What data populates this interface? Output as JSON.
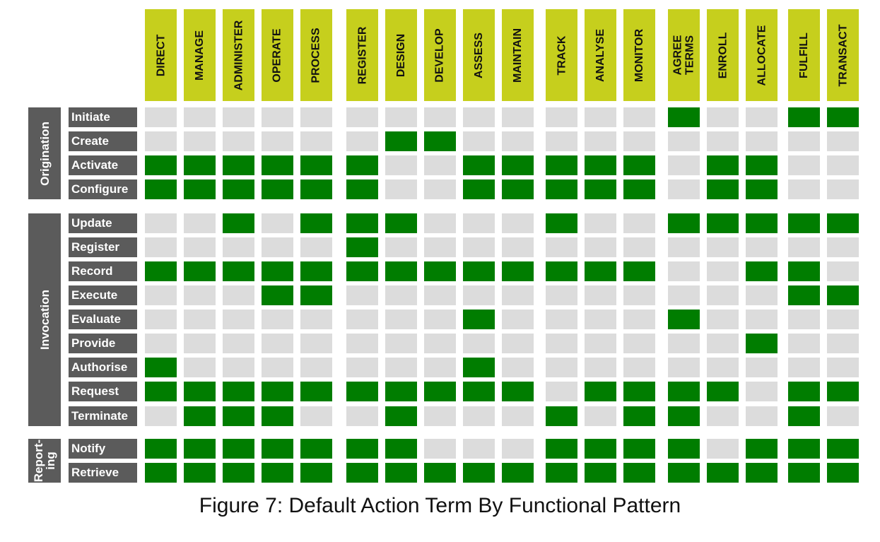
{
  "columns": [
    {
      "id": "direct",
      "label": "DIRECT"
    },
    {
      "id": "manage",
      "label": "MANAGE"
    },
    {
      "id": "administer",
      "label": "ADMINISTER"
    },
    {
      "id": "operate",
      "label": "OPERATE"
    },
    {
      "id": "process",
      "label": "PROCESS"
    },
    {
      "id": "register",
      "label": "REGISTER"
    },
    {
      "id": "design",
      "label": "DESIGN"
    },
    {
      "id": "develop",
      "label": "DEVELOP"
    },
    {
      "id": "assess",
      "label": "ASSESS"
    },
    {
      "id": "maintain",
      "label": "MAINTAIN"
    },
    {
      "id": "track",
      "label": "TRACK"
    },
    {
      "id": "analyse",
      "label": "ANALYSE"
    },
    {
      "id": "monitor",
      "label": "MONITOR"
    },
    {
      "id": "agree-terms",
      "label": "AGREE\nTERMS"
    },
    {
      "id": "enroll",
      "label": "ENROLL"
    },
    {
      "id": "allocate",
      "label": "ALLOCATE"
    },
    {
      "id": "fulfill",
      "label": "FULFILL"
    },
    {
      "id": "transact",
      "label": "TRANSACT"
    }
  ],
  "groups": [
    {
      "id": "origination",
      "label": "Origination"
    },
    {
      "id": "invocation",
      "label": "Invocation"
    },
    {
      "id": "reporting",
      "label": "Report-\ning"
    }
  ],
  "rows": [
    {
      "group": 0,
      "label": "Initiate",
      "cells": [
        0,
        0,
        0,
        0,
        0,
        0,
        0,
        0,
        0,
        0,
        0,
        0,
        0,
        1,
        0,
        0,
        1,
        1
      ]
    },
    {
      "group": 0,
      "label": "Create",
      "cells": [
        0,
        0,
        0,
        0,
        0,
        0,
        1,
        1,
        0,
        0,
        0,
        0,
        0,
        0,
        0,
        0,
        0,
        0
      ]
    },
    {
      "group": 0,
      "label": "Activate",
      "cells": [
        1,
        1,
        1,
        1,
        1,
        1,
        0,
        0,
        1,
        1,
        1,
        1,
        1,
        0,
        1,
        1,
        0,
        0
      ]
    },
    {
      "group": 0,
      "label": "Configure",
      "cells": [
        1,
        1,
        1,
        1,
        1,
        1,
        0,
        0,
        1,
        1,
        1,
        1,
        1,
        0,
        1,
        1,
        0,
        0
      ]
    },
    {
      "group": 1,
      "label": "Update",
      "cells": [
        0,
        0,
        1,
        0,
        1,
        1,
        1,
        0,
        0,
        0,
        1,
        0,
        0,
        1,
        1,
        1,
        1,
        1
      ]
    },
    {
      "group": 1,
      "label": "Register",
      "cells": [
        0,
        0,
        0,
        0,
        0,
        1,
        0,
        0,
        0,
        0,
        0,
        0,
        0,
        0,
        0,
        0,
        0,
        0
      ]
    },
    {
      "group": 1,
      "label": "Record",
      "cells": [
        1,
        1,
        1,
        1,
        1,
        1,
        1,
        1,
        1,
        1,
        1,
        1,
        1,
        0,
        0,
        1,
        1,
        0
      ]
    },
    {
      "group": 1,
      "label": "Execute",
      "cells": [
        0,
        0,
        0,
        1,
        1,
        0,
        0,
        0,
        0,
        0,
        0,
        0,
        0,
        0,
        0,
        0,
        1,
        1
      ]
    },
    {
      "group": 1,
      "label": "Evaluate",
      "cells": [
        0,
        0,
        0,
        0,
        0,
        0,
        0,
        0,
        1,
        0,
        0,
        0,
        0,
        1,
        0,
        0,
        0,
        0
      ]
    },
    {
      "group": 1,
      "label": "Provide",
      "cells": [
        0,
        0,
        0,
        0,
        0,
        0,
        0,
        0,
        0,
        0,
        0,
        0,
        0,
        0,
        0,
        1,
        0,
        0
      ]
    },
    {
      "group": 1,
      "label": "Authorise",
      "cells": [
        1,
        0,
        0,
        0,
        0,
        0,
        0,
        0,
        1,
        0,
        0,
        0,
        0,
        0,
        0,
        0,
        0,
        0
      ]
    },
    {
      "group": 1,
      "label": "Request",
      "cells": [
        1,
        1,
        1,
        1,
        1,
        1,
        1,
        1,
        1,
        1,
        0,
        1,
        1,
        1,
        1,
        0,
        1,
        1
      ]
    },
    {
      "group": 1,
      "label": "Terminate",
      "cells": [
        0,
        1,
        1,
        1,
        0,
        0,
        1,
        0,
        0,
        0,
        1,
        0,
        1,
        1,
        0,
        0,
        1,
        0
      ]
    },
    {
      "group": 2,
      "label": "Notify",
      "cells": [
        1,
        1,
        1,
        1,
        1,
        1,
        1,
        0,
        0,
        0,
        1,
        1,
        1,
        1,
        0,
        1,
        1,
        1
      ]
    },
    {
      "group": 2,
      "label": "Retrieve",
      "cells": [
        1,
        1,
        1,
        1,
        1,
        1,
        1,
        1,
        1,
        1,
        1,
        1,
        1,
        1,
        1,
        1,
        1,
        1
      ]
    }
  ],
  "caption": "Figure 7: Default Action Term By Functional Pattern",
  "colors": {
    "header_bg": "#c6cf1d",
    "label_bg": "#5b5b5b",
    "cell_on": "#007d00",
    "cell_off": "#dcdcdc"
  }
}
